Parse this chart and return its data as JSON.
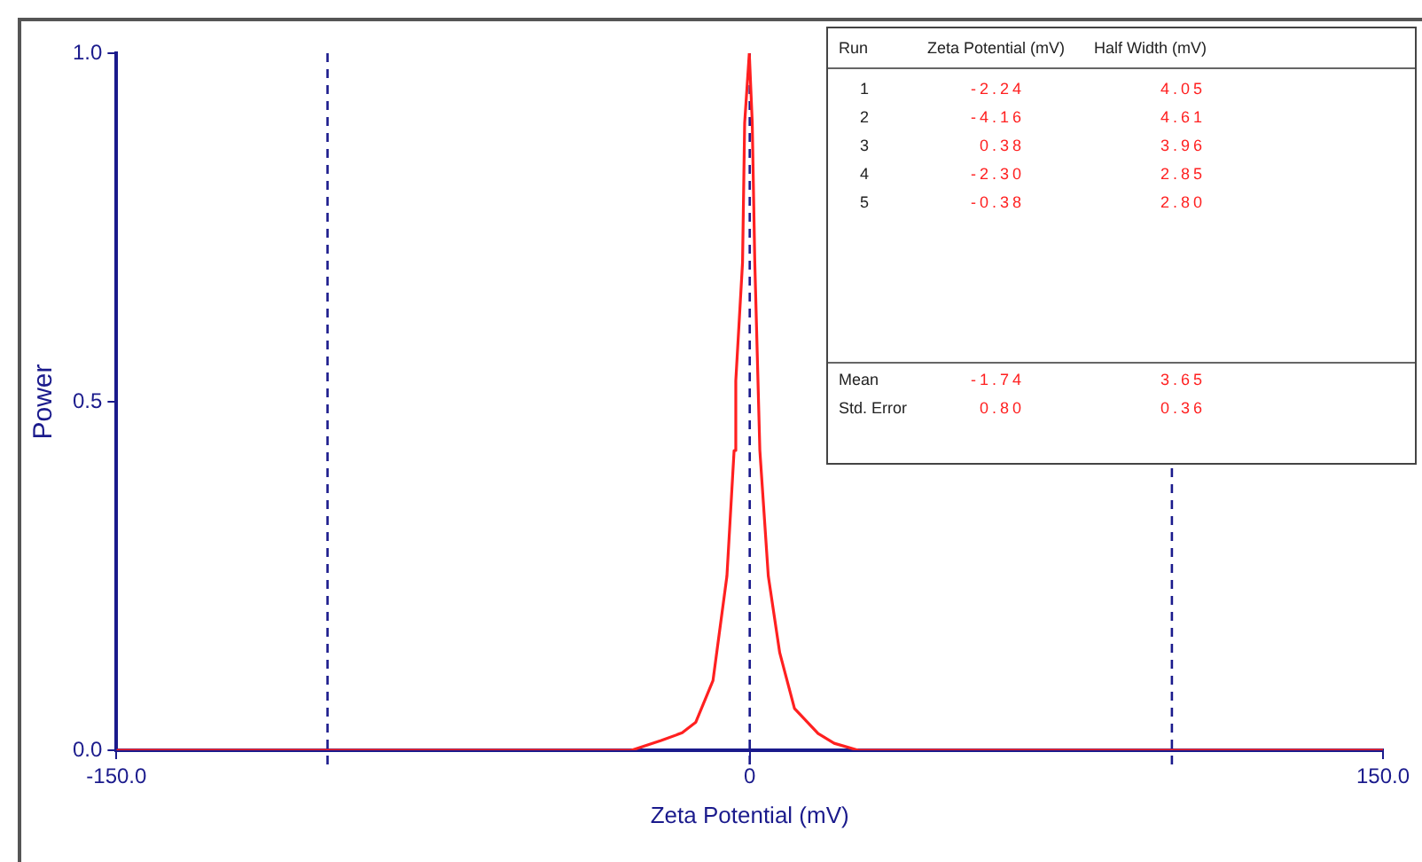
{
  "chart_data": {
    "type": "line",
    "xlabel": "Zeta Potential (mV)",
    "ylabel": "Power",
    "xlim": [
      -150,
      150
    ],
    "ylim": [
      0,
      1
    ],
    "xticks": [
      {
        "value": -150,
        "label": "-150.0"
      },
      0,
      {
        "value": 150,
        "label": "150.0"
      }
    ],
    "yticks": [
      {
        "value": 0,
        "label": "0.0"
      },
      {
        "value": 0.5,
        "label": "0.5"
      },
      {
        "value": 1,
        "label": "1.0"
      }
    ],
    "grid": false,
    "legend": false,
    "marker": "none",
    "line_style": "solid",
    "series": [
      {
        "color": "#ff2020",
        "x": [
          -150,
          -100,
          -50,
          -28,
          -21,
          -16,
          -12.8,
          -8.7,
          -5.4,
          -3.7,
          -3.3,
          -1.7,
          -1.2,
          -0.1,
          0.6,
          1.2,
          2.4,
          4.4,
          7.1,
          10.6,
          16.2,
          20,
          25.7,
          50,
          100,
          150
        ],
        "values": [
          0,
          0,
          0,
          0,
          0.014,
          0.025,
          0.04,
          0.1,
          0.25,
          0.43,
          0.53,
          0.7,
          0.9,
          1.0,
          0.9,
          0.7,
          0.43,
          0.25,
          0.14,
          0.06,
          0.024,
          0.01,
          0,
          0,
          0,
          0
        ]
      }
    ],
    "ref_lines": [
      {
        "axis": "x",
        "value": -100,
        "color": "#1a1a8c",
        "line_style": "dashed"
      },
      {
        "axis": "x",
        "value": 0,
        "color": "#1a1a8c",
        "line_style": "dashed"
      },
      {
        "axis": "x",
        "value": 100,
        "color": "#1a1a8c",
        "line_style": "dashed"
      }
    ],
    "annotations": [
      "Run",
      "Zeta Potential (mV)",
      "Half Width (mV)",
      "1",
      "-2.24",
      "4.05",
      "2",
      "-4.16",
      "4.61",
      "3",
      "0.38",
      "3.96",
      "4",
      "-2.30",
      "2.85",
      "5",
      "-0.38",
      "2.80",
      "Mean",
      "-1.74",
      "3.65",
      "Std. Error",
      "0.80",
      "0.36"
    ]
  }
}
